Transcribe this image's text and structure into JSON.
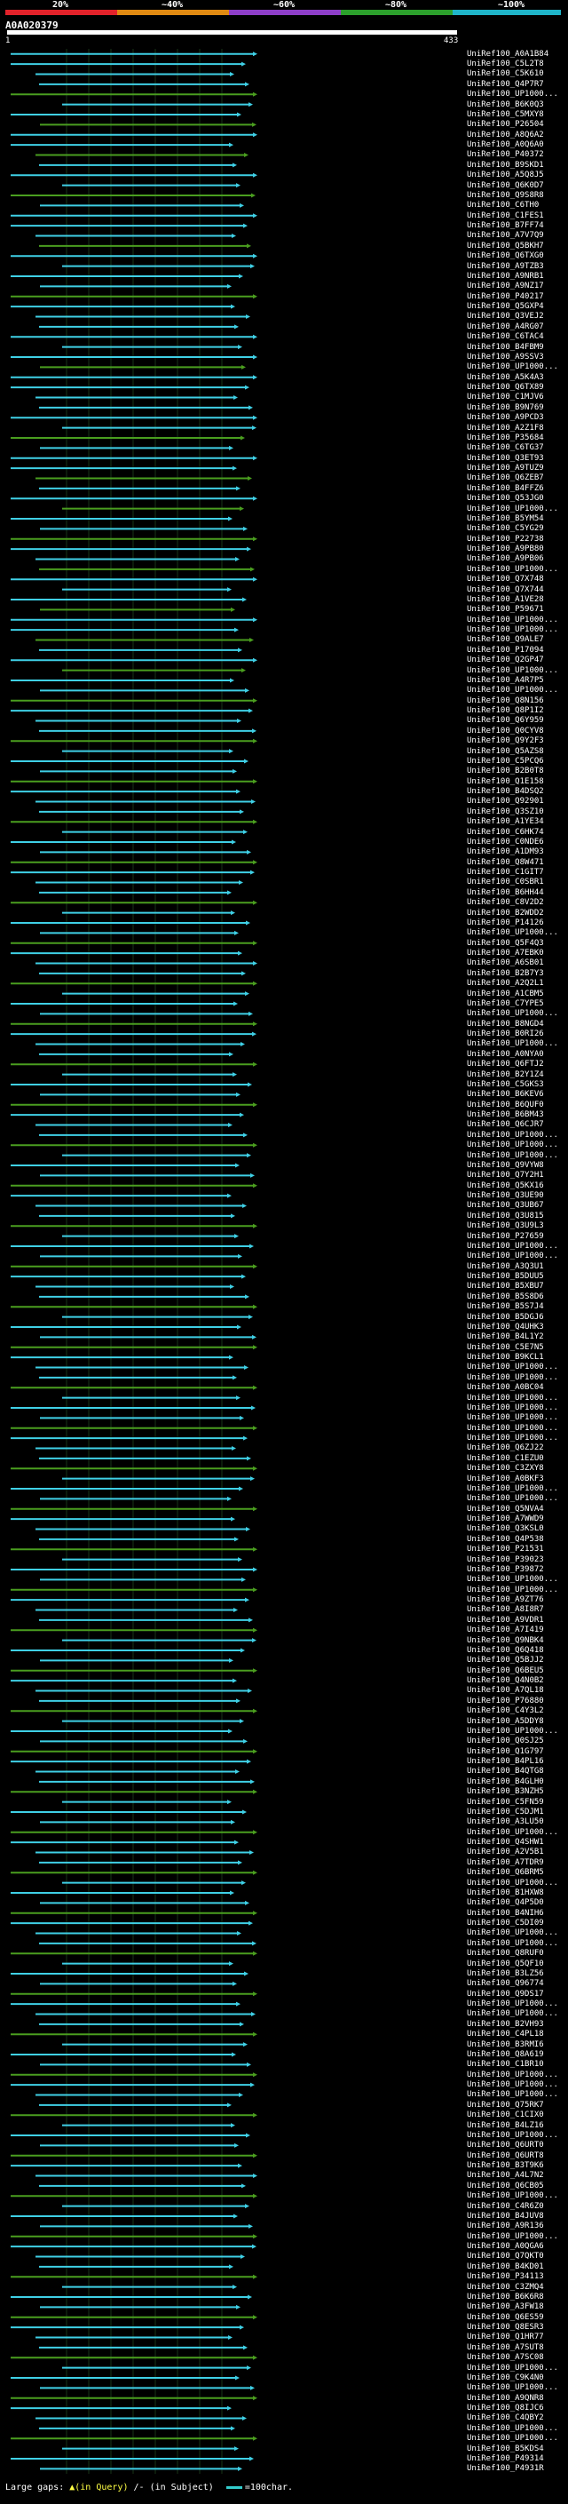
{
  "scale": {
    "labels": [
      "20%",
      "~40%",
      "~60%",
      "~80%",
      "~100%"
    ],
    "colors": [
      "#e2222a",
      "#e08a12",
      "#8e3ec8",
      "#2ca02c",
      "#1fb5c9"
    ]
  },
  "query": {
    "id": "A0A020379",
    "start": "1",
    "end": "433"
  },
  "hit_colors": {
    "green": "#4a9e1f",
    "cyan": "#3fd0e6"
  },
  "hits": [
    {
      "id": "UniRef100_A0A1B84",
      "color": "cyan"
    },
    {
      "id": "UniRef100_C5L2T8",
      "color": "cyan"
    },
    {
      "id": "UniRef100_C5K610",
      "color": "cyan"
    },
    {
      "id": "UniRef100_Q4P7R7",
      "color": "cyan"
    },
    {
      "id": "UniRef100_UP1000...",
      "color": "green"
    },
    {
      "id": "UniRef100_B6K0Q3",
      "color": "cyan"
    },
    {
      "id": "UniRef100_C5MXY8",
      "color": "cyan"
    },
    {
      "id": "UniRef100_P26504",
      "color": "green"
    },
    {
      "id": "UniRef100_A8Q6A2",
      "color": "cyan"
    },
    {
      "id": "UniRef100_A0Q6A0",
      "color": "cyan"
    },
    {
      "id": "UniRef100_P40372",
      "color": "green"
    },
    {
      "id": "UniRef100_B9SKD1",
      "color": "cyan"
    },
    {
      "id": "UniRef100_A5Q8J5",
      "color": "cyan"
    },
    {
      "id": "UniRef100_Q6K0D7",
      "color": "cyan"
    },
    {
      "id": "UniRef100_Q9S8R8",
      "color": "green"
    },
    {
      "id": "UniRef100_C6TH0",
      "color": "cyan"
    },
    {
      "id": "UniRef100_C1FES1",
      "color": "cyan"
    },
    {
      "id": "UniRef100_B7FF74",
      "color": "cyan"
    },
    {
      "id": "UniRef100_A7V7Q9",
      "color": "cyan"
    },
    {
      "id": "UniRef100_Q5BKH7",
      "color": "green"
    },
    {
      "id": "UniRef100_Q6TXG0",
      "color": "cyan"
    },
    {
      "id": "UniRef100_A9TZB3",
      "color": "cyan"
    },
    {
      "id": "UniRef100_A9NRB1",
      "color": "cyan"
    },
    {
      "id": "UniRef100_A9NZ17",
      "color": "cyan"
    },
    {
      "id": "UniRef100_P40217",
      "color": "green"
    },
    {
      "id": "UniRef100_Q5GXP4",
      "color": "cyan"
    },
    {
      "id": "UniRef100_Q3VEJ2",
      "color": "cyan"
    },
    {
      "id": "UniRef100_A4RG07",
      "color": "cyan"
    },
    {
      "id": "UniRef100_C6TAC4",
      "color": "cyan"
    },
    {
      "id": "UniRef100_B4FBM9",
      "color": "cyan"
    },
    {
      "id": "UniRef100_A9SSV3",
      "color": "cyan"
    },
    {
      "id": "UniRef100_UP1000...",
      "color": "green"
    },
    {
      "id": "UniRef100_A5K4A3",
      "color": "cyan"
    },
    {
      "id": "UniRef100_Q6TX89",
      "color": "cyan"
    },
    {
      "id": "UniRef100_C1MJV6",
      "color": "cyan"
    },
    {
      "id": "UniRef100_B9N769",
      "color": "cyan"
    },
    {
      "id": "UniRef100_A9PCD3",
      "color": "cyan"
    },
    {
      "id": "UniRef100_A2Z1F8",
      "color": "cyan"
    },
    {
      "id": "UniRef100_P35684",
      "color": "green"
    },
    {
      "id": "UniRef100_C6TG37",
      "color": "cyan"
    },
    {
      "id": "UniRef100_Q3ET93",
      "color": "cyan"
    },
    {
      "id": "UniRef100_A9TUZ9",
      "color": "cyan"
    },
    {
      "id": "UniRef100_Q6ZEB7",
      "color": "green"
    },
    {
      "id": "UniRef100_B4FFZ6",
      "color": "cyan"
    },
    {
      "id": "UniRef100_Q53JG0",
      "color": "cyan"
    },
    {
      "id": "UniRef100_UP1000...",
      "color": "green"
    },
    {
      "id": "UniRef100_B5YM54",
      "color": "cyan"
    },
    {
      "id": "UniRef100_C5YG29",
      "color": "cyan"
    },
    {
      "id": "UniRef100_P22738",
      "color": "green"
    },
    {
      "id": "UniRef100_A9PB80",
      "color": "cyan"
    },
    {
      "id": "UniRef100_A9PB06",
      "color": "cyan"
    },
    {
      "id": "UniRef100_UP1000...",
      "color": "green"
    },
    {
      "id": "UniRef100_Q7X748",
      "color": "cyan"
    },
    {
      "id": "UniRef100_Q7X744",
      "color": "cyan"
    },
    {
      "id": "UniRef100_A1VE28",
      "color": "cyan"
    },
    {
      "id": "UniRef100_P59671",
      "color": "green"
    },
    {
      "id": "UniRef100_UP1000...",
      "color": "cyan"
    },
    {
      "id": "UniRef100_UP1000...",
      "color": "cyan"
    },
    {
      "id": "UniRef100_Q9ALE7",
      "color": "green"
    },
    {
      "id": "UniRef100_P17094",
      "color": "cyan"
    },
    {
      "id": "UniRef100_Q2GP47",
      "color": "cyan"
    },
    {
      "id": "UniRef100_UP1000...",
      "color": "green"
    },
    {
      "id": "UniRef100_A4R7P5",
      "color": "cyan"
    },
    {
      "id": "UniRef100_UP1000...",
      "color": "cyan"
    },
    {
      "id": "UniRef100_Q8N156",
      "color": "green"
    },
    {
      "id": "UniRef100_Q8P1I2",
      "color": "cyan"
    },
    {
      "id": "UniRef100_Q6Y959",
      "color": "cyan"
    },
    {
      "id": "UniRef100_Q0CYV8",
      "color": "cyan"
    },
    {
      "id": "UniRef100_Q9Y2F3",
      "color": "green"
    },
    {
      "id": "UniRef100_Q5AZS8",
      "color": "cyan"
    },
    {
      "id": "UniRef100_C5PCQ6",
      "color": "cyan"
    },
    {
      "id": "UniRef100_B2B0T8",
      "color": "cyan"
    },
    {
      "id": "UniRef100_Q1E158",
      "color": "green"
    },
    {
      "id": "UniRef100_B4DSQ2",
      "color": "cyan"
    },
    {
      "id": "UniRef100_Q92901",
      "color": "cyan"
    },
    {
      "id": "UniRef100_Q3SZ10",
      "color": "cyan"
    },
    {
      "id": "UniRef100_A1YE34",
      "color": "green"
    },
    {
      "id": "UniRef100_C6HK74",
      "color": "cyan"
    },
    {
      "id": "UniRef100_C0NDE6",
      "color": "cyan"
    },
    {
      "id": "UniRef100_A1DM93",
      "color": "cyan"
    },
    {
      "id": "UniRef100_Q8W471",
      "color": "green"
    },
    {
      "id": "UniRef100_C1GIT7",
      "color": "cyan"
    },
    {
      "id": "UniRef100_C0SBR1",
      "color": "cyan"
    },
    {
      "id": "UniRef100_B6HH44",
      "color": "cyan"
    },
    {
      "id": "UniRef100_C8V2D2",
      "color": "green"
    },
    {
      "id": "UniRef100_B2WDD2",
      "color": "cyan"
    },
    {
      "id": "UniRef100_P14126",
      "color": "cyan"
    },
    {
      "id": "UniRef100_UP1000...",
      "color": "cyan"
    },
    {
      "id": "UniRef100_Q5F4Q3",
      "color": "green"
    },
    {
      "id": "UniRef100_A7EBK0",
      "color": "cyan"
    },
    {
      "id": "UniRef100_A6SB01",
      "color": "cyan"
    },
    {
      "id": "UniRef100_B2B7Y3",
      "color": "cyan"
    },
    {
      "id": "UniRef100_A2Q2L1",
      "color": "green"
    },
    {
      "id": "UniRef100_A1CBM5",
      "color": "cyan"
    },
    {
      "id": "UniRef100_C7YPE5",
      "color": "cyan"
    },
    {
      "id": "UniRef100_UP1000...",
      "color": "cyan"
    },
    {
      "id": "UniRef100_B8NGD4",
      "color": "green"
    },
    {
      "id": "UniRef100_B0RI26",
      "color": "cyan"
    },
    {
      "id": "UniRef100_UP1000...",
      "color": "cyan"
    },
    {
      "id": "UniRef100_A0NYA0",
      "color": "cyan"
    },
    {
      "id": "UniRef100_Q6FTJ2",
      "color": "green"
    },
    {
      "id": "UniRef100_B2Y1Z4",
      "color": "cyan"
    },
    {
      "id": "UniRef100_C5GKS3",
      "color": "cyan"
    },
    {
      "id": "UniRef100_B6KEV6",
      "color": "cyan"
    },
    {
      "id": "UniRef100_B6QUF0",
      "color": "green"
    },
    {
      "id": "UniRef100_B6BM43",
      "color": "cyan"
    },
    {
      "id": "UniRef100_Q6CJR7",
      "color": "cyan"
    },
    {
      "id": "UniRef100_UP1000...",
      "color": "cyan"
    },
    {
      "id": "UniRef100_UP1000...",
      "color": "green"
    },
    {
      "id": "UniRef100_UP1000...",
      "color": "cyan"
    },
    {
      "id": "UniRef100_Q9VYW8",
      "color": "cyan"
    },
    {
      "id": "UniRef100_Q7Y2H1",
      "color": "cyan"
    },
    {
      "id": "UniRef100_Q5KX16",
      "color": "green"
    },
    {
      "id": "UniRef100_Q3UE90",
      "color": "cyan"
    },
    {
      "id": "UniRef100_Q3UB67",
      "color": "cyan"
    },
    {
      "id": "UniRef100_Q3U815",
      "color": "cyan"
    },
    {
      "id": "UniRef100_Q3U9L3",
      "color": "green"
    },
    {
      "id": "UniRef100_P27659",
      "color": "cyan"
    },
    {
      "id": "UniRef100_UP1000...",
      "color": "cyan"
    },
    {
      "id": "UniRef100_UP1000...",
      "color": "cyan"
    },
    {
      "id": "UniRef100_A3Q3U1",
      "color": "green"
    },
    {
      "id": "UniRef100_B5DUU5",
      "color": "cyan"
    },
    {
      "id": "UniRef100_B5XBU7",
      "color": "cyan"
    },
    {
      "id": "UniRef100_B5S8D6",
      "color": "cyan"
    },
    {
      "id": "UniRef100_B5S7J4",
      "color": "green"
    },
    {
      "id": "UniRef100_B5DGJ6",
      "color": "cyan"
    },
    {
      "id": "UniRef100_Q4UHK3",
      "color": "cyan"
    },
    {
      "id": "UniRef100_B4L1Y2",
      "color": "cyan"
    },
    {
      "id": "UniRef100_C5E7N5",
      "color": "green"
    },
    {
      "id": "UniRef100_B9KCL1",
      "color": "cyan"
    },
    {
      "id": "UniRef100_UP1000...",
      "color": "cyan"
    },
    {
      "id": "UniRef100_UP1000...",
      "color": "cyan"
    },
    {
      "id": "UniRef100_A0BC04",
      "color": "green"
    },
    {
      "id": "UniRef100_UP1000...",
      "color": "cyan"
    },
    {
      "id": "UniRef100_UP1000...",
      "color": "cyan"
    },
    {
      "id": "UniRef100_UP1000...",
      "color": "cyan"
    },
    {
      "id": "UniRef100_UP1000...",
      "color": "green"
    },
    {
      "id": "UniRef100_UP1000...",
      "color": "cyan"
    },
    {
      "id": "UniRef100_Q6ZJ22",
      "color": "cyan"
    },
    {
      "id": "UniRef100_C1EZU0",
      "color": "cyan"
    },
    {
      "id": "UniRef100_C3ZXY8",
      "color": "green"
    },
    {
      "id": "UniRef100_A0BKF3",
      "color": "cyan"
    },
    {
      "id": "UniRef100_UP1000...",
      "color": "cyan"
    },
    {
      "id": "UniRef100_UP1000...",
      "color": "cyan"
    },
    {
      "id": "UniRef100_Q5NVA4",
      "color": "green"
    },
    {
      "id": "UniRef100_A7WWD9",
      "color": "cyan"
    },
    {
      "id": "UniRef100_Q3KSL0",
      "color": "cyan"
    },
    {
      "id": "UniRef100_Q4P538",
      "color": "cyan"
    },
    {
      "id": "UniRef100_P21531",
      "color": "green"
    },
    {
      "id": "UniRef100_P39023",
      "color": "cyan"
    },
    {
      "id": "UniRef100_P39872",
      "color": "cyan"
    },
    {
      "id": "UniRef100_UP1000...",
      "color": "cyan"
    },
    {
      "id": "UniRef100_UP1000...",
      "color": "green"
    },
    {
      "id": "UniRef100_A9ZT76",
      "color": "cyan"
    },
    {
      "id": "UniRef100_A8I8R7",
      "color": "cyan"
    },
    {
      "id": "UniRef100_A9VDR1",
      "color": "cyan"
    },
    {
      "id": "UniRef100_A7I419",
      "color": "green"
    },
    {
      "id": "UniRef100_Q9NBK4",
      "color": "cyan"
    },
    {
      "id": "UniRef100_Q6Q418",
      "color": "cyan"
    },
    {
      "id": "UniRef100_Q5BJJ2",
      "color": "cyan"
    },
    {
      "id": "UniRef100_Q6BEU5",
      "color": "green"
    },
    {
      "id": "UniRef100_Q4N0B2",
      "color": "cyan"
    },
    {
      "id": "UniRef100_A7QL18",
      "color": "cyan"
    },
    {
      "id": "UniRef100_P76880",
      "color": "cyan"
    },
    {
      "id": "UniRef100_C4Y3L2",
      "color": "green"
    },
    {
      "id": "UniRef100_A5DDY8",
      "color": "cyan"
    },
    {
      "id": "UniRef100_UP1000...",
      "color": "cyan"
    },
    {
      "id": "UniRef100_Q0SJ25",
      "color": "cyan"
    },
    {
      "id": "UniRef100_Q1G797",
      "color": "green"
    },
    {
      "id": "UniRef100_B4PL16",
      "color": "cyan"
    },
    {
      "id": "UniRef100_B4QTG8",
      "color": "cyan"
    },
    {
      "id": "UniRef100_B4GLH0",
      "color": "cyan"
    },
    {
      "id": "UniRef100_B3NZH5",
      "color": "green"
    },
    {
      "id": "UniRef100_C5FN59",
      "color": "cyan"
    },
    {
      "id": "UniRef100_C5DJM1",
      "color": "cyan"
    },
    {
      "id": "UniRef100_A3LU50",
      "color": "cyan"
    },
    {
      "id": "UniRef100_UP1000...",
      "color": "green"
    },
    {
      "id": "UniRef100_Q4SHW1",
      "color": "cyan"
    },
    {
      "id": "UniRef100_A2V5B1",
      "color": "cyan"
    },
    {
      "id": "UniRef100_A7TDR9",
      "color": "cyan"
    },
    {
      "id": "UniRef100_Q6BRM5",
      "color": "green"
    },
    {
      "id": "UniRef100_UP1000...",
      "color": "cyan"
    },
    {
      "id": "UniRef100_B1HXW8",
      "color": "cyan"
    },
    {
      "id": "UniRef100_Q4P5D0",
      "color": "cyan"
    },
    {
      "id": "UniRef100_B4NIH6",
      "color": "green"
    },
    {
      "id": "UniRef100_C5DI09",
      "color": "cyan"
    },
    {
      "id": "UniRef100_UP1000...",
      "color": "cyan"
    },
    {
      "id": "UniRef100_UP1000...",
      "color": "cyan"
    },
    {
      "id": "UniRef100_Q8RUF0",
      "color": "green"
    },
    {
      "id": "UniRef100_Q5QF10",
      "color": "cyan"
    },
    {
      "id": "UniRef100_B3LZ56",
      "color": "cyan"
    },
    {
      "id": "UniRef100_Q96774",
      "color": "cyan"
    },
    {
      "id": "UniRef100_Q9DS17",
      "color": "green"
    },
    {
      "id": "UniRef100_UP1000...",
      "color": "cyan"
    },
    {
      "id": "UniRef100_UP1000...",
      "color": "cyan"
    },
    {
      "id": "UniRef100_B2VH93",
      "color": "cyan"
    },
    {
      "id": "UniRef100_C4PL18",
      "color": "green"
    },
    {
      "id": "UniRef100_B3RMI6",
      "color": "cyan"
    },
    {
      "id": "UniRef100_Q8A619",
      "color": "cyan"
    },
    {
      "id": "UniRef100_C1BR10",
      "color": "cyan"
    },
    {
      "id": "UniRef100_UP1000...",
      "color": "green"
    },
    {
      "id": "UniRef100_UP1000...",
      "color": "cyan"
    },
    {
      "id": "UniRef100_UP1000...",
      "color": "cyan"
    },
    {
      "id": "UniRef100_Q75RK7",
      "color": "cyan"
    },
    {
      "id": "UniRef100_C1CIX0",
      "color": "green"
    },
    {
      "id": "UniRef100_B4LZ16",
      "color": "cyan"
    },
    {
      "id": "UniRef100_UP1000...",
      "color": "cyan"
    },
    {
      "id": "UniRef100_Q6URT0",
      "color": "cyan"
    },
    {
      "id": "UniRef100_Q6URT8",
      "color": "green"
    },
    {
      "id": "UniRef100_B3T9K6",
      "color": "cyan"
    },
    {
      "id": "UniRef100_A4L7N2",
      "color": "cyan"
    },
    {
      "id": "UniRef100_Q6CB05",
      "color": "cyan"
    },
    {
      "id": "UniRef100_UP1000...",
      "color": "green"
    },
    {
      "id": "UniRef100_C4R6Z0",
      "color": "cyan"
    },
    {
      "id": "UniRef100_B4JUV8",
      "color": "cyan"
    },
    {
      "id": "UniRef100_A9R136",
      "color": "cyan"
    },
    {
      "id": "UniRef100_UP1000...",
      "color": "green"
    },
    {
      "id": "UniRef100_A0QGA6",
      "color": "cyan"
    },
    {
      "id": "UniRef100_Q7QKT0",
      "color": "cyan"
    },
    {
      "id": "UniRef100_B4KD01",
      "color": "cyan"
    },
    {
      "id": "UniRef100_P34113",
      "color": "green"
    },
    {
      "id": "UniRef100_C3ZMQ4",
      "color": "cyan"
    },
    {
      "id": "UniRef100_B6K6R8",
      "color": "cyan"
    },
    {
      "id": "UniRef100_A3FW18",
      "color": "cyan"
    },
    {
      "id": "UniRef100_Q6ES59",
      "color": "green"
    },
    {
      "id": "UniRef100_Q8ESR3",
      "color": "cyan"
    },
    {
      "id": "UniRef100_Q1HR77",
      "color": "cyan"
    },
    {
      "id": "UniRef100_A7SUT8",
      "color": "cyan"
    },
    {
      "id": "UniRef100_A7SC08",
      "color": "green"
    },
    {
      "id": "UniRef100_UP1000...",
      "color": "cyan"
    },
    {
      "id": "UniRef100_C9K4N0",
      "color": "cyan"
    },
    {
      "id": "UniRef100_UP1000...",
      "color": "cyan"
    },
    {
      "id": "UniRef100_A9QNR8",
      "color": "green"
    },
    {
      "id": "UniRef100_Q8IJC6",
      "color": "cyan"
    },
    {
      "id": "UniRef100_C4QBY2",
      "color": "cyan"
    },
    {
      "id": "UniRef100_UP1000...",
      "color": "cyan"
    },
    {
      "id": "UniRef100_UP1000...",
      "color": "green"
    },
    {
      "id": "UniRef100_B5KDS4",
      "color": "cyan"
    },
    {
      "id": "UniRef100_P49314",
      "color": "cyan"
    },
    {
      "id": "UniRef100_P4931R",
      "color": "cyan"
    }
  ],
  "footer": {
    "gaps_text": "Large gaps: ",
    "in_query": "▲(in Query)",
    "in_subject": "/- (in Subject)",
    "scale_text": "=100char."
  }
}
